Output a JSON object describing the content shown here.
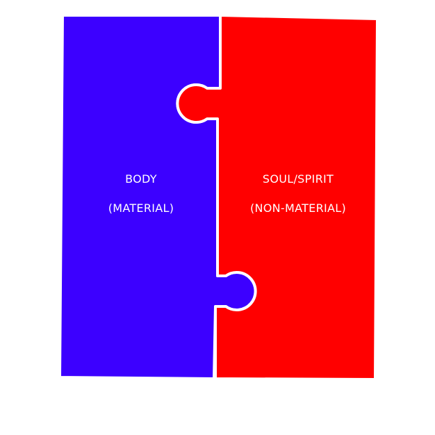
{
  "pieces": {
    "left": {
      "title": "BODY",
      "subtitle": "(MATERIAL)",
      "color": "#3c00ff"
    },
    "right": {
      "title": "SOUL/SPIRIT",
      "subtitle": "(NON-MATERIAL)",
      "color": "#ff0000"
    }
  },
  "seam_color": "#ffffff",
  "background": "#ffffff"
}
